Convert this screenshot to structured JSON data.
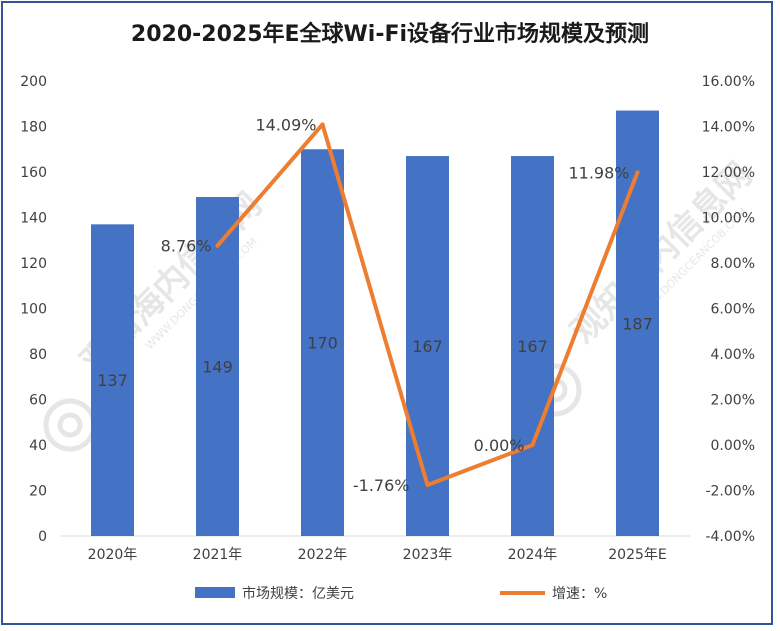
{
  "chart_data": {
    "type": "bar",
    "title": "2020-2025年E全球Wi-Fi设备行业市场规模及预测",
    "categories": [
      "2020年",
      "2021年",
      "2022年",
      "2023年",
      "2024年",
      "2025年E"
    ],
    "series": [
      {
        "name": "市场规模：亿美元",
        "type": "bar",
        "axis": "left",
        "values": [
          137,
          149,
          170,
          167,
          167,
          187
        ],
        "labels": [
          "137",
          "149",
          "170",
          "167",
          "167",
          "187"
        ],
        "color": "#4472c4"
      },
      {
        "name": "增速：%",
        "type": "line",
        "axis": "right",
        "values": [
          null,
          8.76,
          14.09,
          -1.76,
          0.0,
          11.98
        ],
        "labels": [
          "",
          "8.76%",
          "14.09%",
          "-1.76%",
          "0.00%",
          "11.98%"
        ],
        "color": "#ed7d31"
      }
    ],
    "y_left": {
      "min": 0,
      "max": 200,
      "ticks": [
        "0",
        "20",
        "40",
        "60",
        "80",
        "100",
        "120",
        "140",
        "160",
        "180",
        "200"
      ]
    },
    "y_right": {
      "min": -4,
      "max": 16,
      "ticks": [
        "-4.00%",
        "-2.00%",
        "0.00%",
        "2.00%",
        "4.00%",
        "6.00%",
        "8.00%",
        "10.00%",
        "12.00%",
        "14.00%",
        "16.00%"
      ]
    },
    "xlabel": "",
    "ylabel": "",
    "grid": false,
    "legend_position": "bottom"
  },
  "watermark": [
    "观知海内信息网",
    "WWW.DONGCEANCOB.COM"
  ]
}
